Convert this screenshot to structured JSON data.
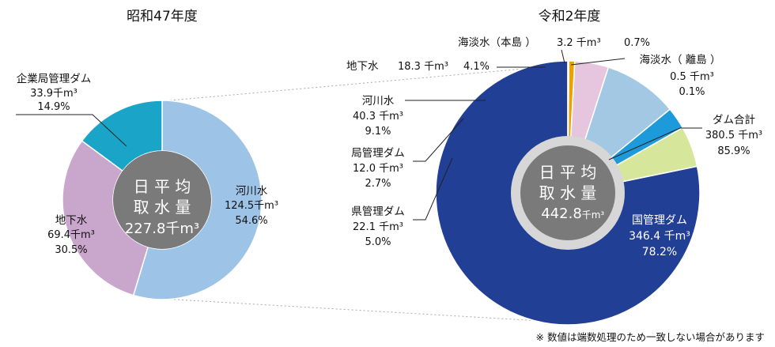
{
  "chart_data": [
    {
      "type": "pie",
      "variant": "donut",
      "title": "昭和47年度",
      "center": {
        "line1": "日 平 均",
        "line2": "取 水 量",
        "line3": "227.8千m³"
      },
      "slices": [
        {
          "label": "河川水",
          "value": 124.5,
          "value_text": "124.5千m³",
          "percent_text": "54.6%",
          "color": "#9dc3e6"
        },
        {
          "label": "地下水",
          "value": 69.4,
          "value_text": "69.4千m³",
          "percent_text": "30.5%",
          "color": "#c9a6cc"
        },
        {
          "label": "企業局管理ダム",
          "value": 33.9,
          "value_text": "33.9千m³",
          "percent_text": "14.9%",
          "color": "#1aa4c8"
        }
      ]
    },
    {
      "type": "pie",
      "title": "令和2年度",
      "center": {
        "line1": "日 平 均",
        "line2": "取 水 量",
        "line3": "442.8",
        "line3_unit": "千m³"
      },
      "slices": [
        {
          "label": "国管理ダム",
          "value": 346.4,
          "value_text": "346.4 千m³",
          "percent_text": "78.2%",
          "color": "#223f96"
        },
        {
          "label": "県管理ダム",
          "value": 22.1,
          "value_text": "22.1 千m³",
          "percent_text": "5.0%",
          "color": "#d6e69a"
        },
        {
          "label": "局管理ダム",
          "value": 12.0,
          "value_text": "12.0 千m³",
          "percent_text": "2.7%",
          "color": "#1d9ad9"
        },
        {
          "label": "河川水",
          "value": 40.3,
          "value_text": "40.3 千m³",
          "percent_text": "9.1%",
          "color": "#a3c8e4"
        },
        {
          "label": "地下水",
          "value": 18.3,
          "value_text": "18.3 千m³",
          "percent_text": "4.1%",
          "color": "#e6c5de"
        },
        {
          "label": "海淡水（本島 ）",
          "value": 3.2,
          "value_text": "3.2 千m³",
          "percent_text": "0.7%",
          "color": "#e9a200"
        },
        {
          "label": "海淡水（ 離島 ）",
          "value": 0.5,
          "value_text": "0.5 千m³",
          "percent_text": "0.1%",
          "color": "#e03030"
        }
      ],
      "group_annotation": {
        "label": "ダム合計",
        "value_text": "380.5 千m³",
        "percent_text": "85.9%"
      }
    }
  ],
  "footnote": "※ 数値は端数処理のため一致しない場合があります"
}
